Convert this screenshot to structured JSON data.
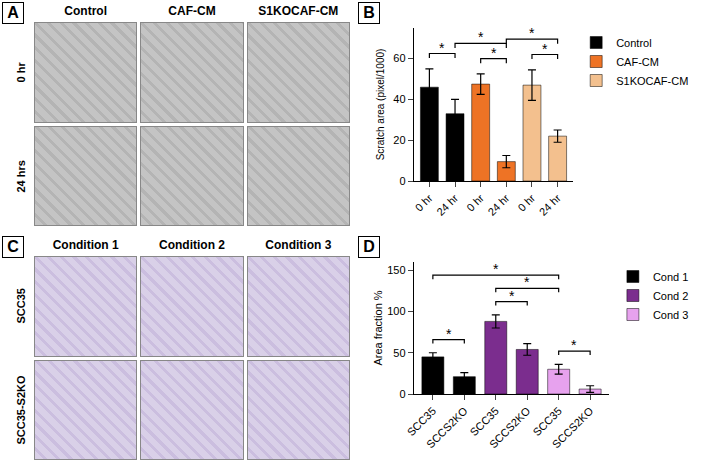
{
  "image_panels": [
    {
      "panel_label": "A",
      "columns": [
        "Control",
        "CAF-CM",
        "S1KOCAF-CM"
      ],
      "rows": [
        "0 hr",
        "24 hrs"
      ]
    },
    {
      "panel_label": "C",
      "columns": [
        "Condition 1",
        "Condition 2",
        "Condition 3"
      ],
      "rows": [
        "SCC35",
        "SCC35-S2KO"
      ]
    }
  ],
  "chart_data": [
    {
      "panel_label": "B",
      "type": "bar",
      "y_label": "Scratch area (pixel/1000)",
      "categories": [
        "0 hr",
        "24 hr",
        "0 hr",
        "24 hr",
        "0 hr",
        "24 hr"
      ],
      "series": [
        {
          "name": "Control",
          "color": "#000000",
          "values": [
            46,
            33,
            null,
            null,
            null,
            null
          ],
          "errors": [
            9,
            7,
            null,
            null,
            null,
            null
          ]
        },
        {
          "name": "CAF-CM",
          "color": "#ee7325",
          "values": [
            null,
            null,
            47.5,
            9.5,
            null,
            null
          ],
          "errors": [
            null,
            null,
            5,
            3,
            null,
            null
          ]
        },
        {
          "name": "S1KOCAF-CM",
          "color": "#f3c08e",
          "values": [
            null,
            null,
            null,
            null,
            47,
            22
          ],
          "errors": [
            null,
            null,
            null,
            null,
            7.5,
            3
          ]
        }
      ],
      "ylim": [
        0,
        75
      ],
      "yticks": [
        0,
        20,
        40,
        60
      ],
      "legend": "right",
      "significance": [
        {
          "from": 0,
          "to": 1,
          "label": "*"
        },
        {
          "from": 2,
          "to": 3,
          "label": "*"
        },
        {
          "from": 4,
          "to": 5,
          "label": "*"
        },
        {
          "from": 1,
          "to": 3,
          "label": "*"
        },
        {
          "from": 3,
          "to": 5,
          "label": "*"
        }
      ]
    },
    {
      "panel_label": "D",
      "type": "bar",
      "y_label": "Area fraction %",
      "categories": [
        "SCC35",
        "SCCS2KO",
        "SCC35",
        "SCCS2KO",
        "SCC35",
        "SCCS2KO"
      ],
      "series": [
        {
          "name": "Cond 1",
          "color": "#000000",
          "values": [
            45,
            21,
            null,
            null,
            null,
            null
          ],
          "errors": [
            5,
            5,
            null,
            null,
            null,
            null
          ]
        },
        {
          "name": "Cond 2",
          "color": "#7b2d8e",
          "values": [
            null,
            null,
            88,
            54,
            null,
            null
          ],
          "errors": [
            null,
            null,
            8,
            7,
            null,
            null
          ]
        },
        {
          "name": "Cond 3",
          "color": "#e7a2ee",
          "values": [
            null,
            null,
            null,
            null,
            30,
            6
          ],
          "errors": [
            null,
            null,
            null,
            null,
            6,
            4
          ]
        }
      ],
      "ylim": [
        0,
        160
      ],
      "yticks": [
        0,
        50,
        100,
        150
      ],
      "legend": "right",
      "significance": [
        {
          "from": 0,
          "to": 1,
          "label": "*"
        },
        {
          "from": 2,
          "to": 3,
          "label": "*"
        },
        {
          "from": 4,
          "to": 5,
          "label": "*"
        },
        {
          "from": 2,
          "to": 4,
          "label": "*"
        },
        {
          "from": 0,
          "to": 4,
          "label": "*"
        }
      ]
    }
  ]
}
